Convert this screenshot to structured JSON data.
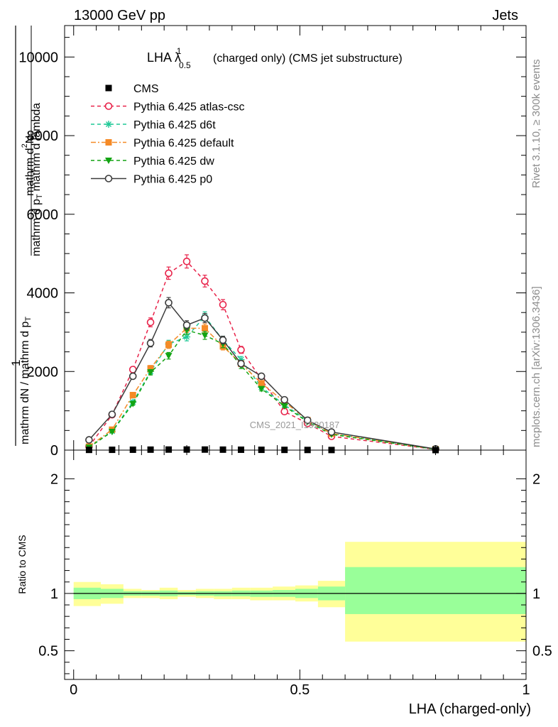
{
  "header": {
    "left": "13000 GeV pp",
    "right": "Jets"
  },
  "side_labels": {
    "rivet": "Rivet 3.1.10, ≥ 300k events",
    "mcplots": "mcplots.cern.ch [arXiv:1306.3436]"
  },
  "watermark": "CMS_2021_I1920187",
  "chart_data": [
    {
      "type": "line",
      "title": {
        "prefix": "LHA λ",
        "sup": "1",
        "sub": "0.5",
        "suffix": "(charged only) (CMS jet substructure)"
      },
      "ylabel": "mathrm d N / mathrm d p_T mathrm d lambda",
      "ylabel_parts": {
        "outer_numerator": "1",
        "outer_denominator": "mathrm dN / mathrm d p",
        "outer_denominator_sub": "T",
        "inner_numerator": "mathrm d",
        "inner_numerator_sup": "2",
        "inner_numerator_tail": "N",
        "inner_denominator": "mathrm d p",
        "inner_denominator_sub": "T",
        "inner_denominator_tail": "mathrm d lambda"
      },
      "ylim": [
        0,
        10800
      ],
      "xlim": [
        -0.02,
        1.0
      ],
      "yticks": [
        0,
        2000,
        4000,
        6000,
        8000,
        10000
      ],
      "ytick_labels": [
        "0",
        "2000",
        "4000",
        "6000",
        "8000",
        "10000"
      ],
      "legend_position": "top-left",
      "x_bins": [
        0.034,
        0.085,
        0.131,
        0.17,
        0.21,
        0.25,
        0.29,
        0.33,
        0.37,
        0.415,
        0.466,
        0.517,
        0.57,
        0.8
      ],
      "series": [
        {
          "name": "CMS",
          "color": "#000000",
          "marker": "square-filled",
          "dash": "none",
          "line": false,
          "values": [
            6,
            8,
            10,
            12,
            14,
            15,
            14,
            12,
            10,
            8,
            6,
            4,
            3,
            1
          ]
        },
        {
          "name": "Pythia 6.425 atlas-csc",
          "color": "#e8234a",
          "marker": "circle-open",
          "dash": "5,4",
          "line": true,
          "values": [
            90,
            900,
            2050,
            3250,
            4500,
            4800,
            4300,
            3700,
            2550,
            1800,
            980,
            680,
            350,
            20
          ]
        },
        {
          "name": "Pythia 6.425 d6t",
          "color": "#1ec896",
          "marker": "star",
          "dash": "5,4",
          "line": true,
          "values": [
            80,
            480,
            1220,
            2000,
            2700,
            2880,
            3400,
            2800,
            2300,
            1600,
            1150,
            750,
            420,
            25
          ]
        },
        {
          "name": "Pythia 6.425 default",
          "color": "#f58a26",
          "marker": "square-filled",
          "dash": "7,3,2,3",
          "line": true,
          "values": [
            90,
            520,
            1400,
            2080,
            2680,
            3100,
            3100,
            2640,
            2200,
            1700,
            1230,
            760,
            420,
            25
          ]
        },
        {
          "name": "Pythia 6.425 dw",
          "color": "#12a412",
          "marker": "triangle-down-filled",
          "dash": "5,4",
          "line": true,
          "values": [
            70,
            470,
            1180,
            1980,
            2400,
            3050,
            2920,
            2700,
            2150,
            1560,
            1120,
            720,
            400,
            20
          ]
        },
        {
          "name": "Pythia 6.425 p0",
          "color": "#3c3c3c",
          "marker": "circle-open",
          "dash": "none",
          "line": true,
          "values": [
            260,
            910,
            1880,
            2720,
            3750,
            3180,
            3360,
            2800,
            2200,
            1880,
            1280,
            760,
            460,
            30
          ]
        }
      ]
    },
    {
      "type": "area",
      "ylabel": "Ratio to CMS",
      "xlabel": "LHA (charged-only)",
      "ylim": [
        0.25,
        2.25
      ],
      "xlim": [
        -0.02,
        1.0
      ],
      "yticks": [
        0.5,
        1,
        2
      ],
      "ytick_labels": [
        "0.5",
        "1",
        "2"
      ],
      "xticks": [
        0,
        0.5,
        1
      ],
      "xtick_labels": [
        "0",
        "0.5",
        "1"
      ],
      "reference_line": 1,
      "bands": {
        "outer_color": "#ffff99",
        "inner_color": "#99ff99",
        "bins": [
          {
            "lo": 0.0,
            "hi": 0.06,
            "outer": [
              0.89,
              1.1
            ],
            "inner": [
              0.95,
              1.05
            ]
          },
          {
            "lo": 0.06,
            "hi": 0.11,
            "outer": [
              0.91,
              1.08
            ],
            "inner": [
              0.96,
              1.04
            ]
          },
          {
            "lo": 0.11,
            "hi": 0.15,
            "outer": [
              0.96,
              1.04
            ],
            "inner": [
              0.98,
              1.02
            ]
          },
          {
            "lo": 0.15,
            "hi": 0.19,
            "outer": [
              0.96,
              1.03
            ],
            "inner": [
              0.98,
              1.02
            ]
          },
          {
            "lo": 0.19,
            "hi": 0.23,
            "outer": [
              0.95,
              1.05
            ],
            "inner": [
              0.975,
              1.025
            ]
          },
          {
            "lo": 0.23,
            "hi": 0.27,
            "outer": [
              0.97,
              1.03
            ],
            "inner": [
              0.985,
              1.015
            ]
          },
          {
            "lo": 0.27,
            "hi": 0.31,
            "outer": [
              0.96,
              1.04
            ],
            "inner": [
              0.98,
              1.02
            ]
          },
          {
            "lo": 0.31,
            "hi": 0.35,
            "outer": [
              0.95,
              1.04
            ],
            "inner": [
              0.975,
              1.02
            ]
          },
          {
            "lo": 0.35,
            "hi": 0.39,
            "outer": [
              0.95,
              1.05
            ],
            "inner": [
              0.975,
              1.025
            ]
          },
          {
            "lo": 0.39,
            "hi": 0.44,
            "outer": [
              0.94,
              1.05
            ],
            "inner": [
              0.97,
              1.025
            ]
          },
          {
            "lo": 0.44,
            "hi": 0.49,
            "outer": [
              0.94,
              1.06
            ],
            "inner": [
              0.97,
              1.03
            ]
          },
          {
            "lo": 0.49,
            "hi": 0.54,
            "outer": [
              0.93,
              1.07
            ],
            "inner": [
              0.96,
              1.04
            ]
          },
          {
            "lo": 0.54,
            "hi": 0.6,
            "outer": [
              0.88,
              1.11
            ],
            "inner": [
              0.94,
              1.06
            ]
          },
          {
            "lo": 0.6,
            "hi": 1.0,
            "outer": [
              0.58,
              1.45
            ],
            "inner": [
              0.82,
              1.23
            ]
          }
        ]
      }
    }
  ]
}
